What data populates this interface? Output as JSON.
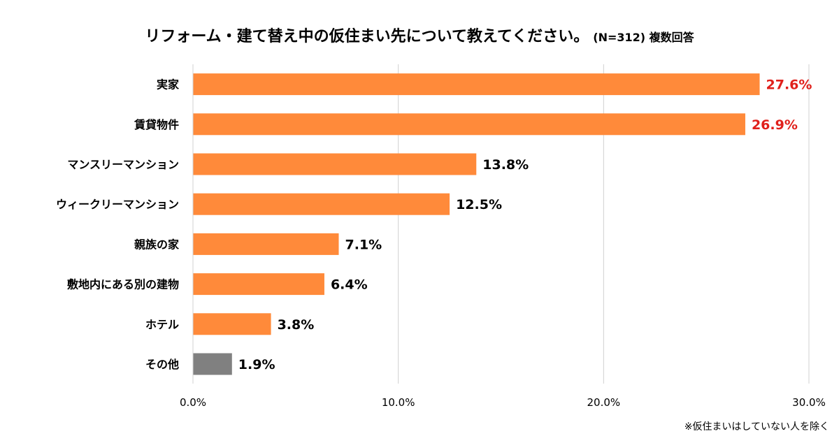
{
  "title": {
    "main": "リフォーム・建て替え中の仮住まい先について教えてください。",
    "sub": "(N=312) 複数回答"
  },
  "footnote": "※仮住まいはしていない人を除く",
  "colors": {
    "bar": "#FF8A3A",
    "bar_other": "#808080",
    "highlight_label": "#E0201B",
    "label": "#000000",
    "grid": "#D0D0D0",
    "axis": "#D0D0D0"
  },
  "chart_data": {
    "type": "bar",
    "orientation": "horizontal",
    "title": "リフォーム・建て替え中の仮住まい先について教えてください。 (N=312) 複数回答",
    "categories": [
      "実家",
      "賃貸物件",
      "マンスリーマンション",
      "ウィークリーマンション",
      "親族の家",
      "敷地内にある別の建物",
      "ホテル",
      "その他"
    ],
    "values": [
      27.6,
      26.9,
      13.8,
      12.5,
      7.1,
      6.4,
      3.8,
      1.9
    ],
    "value_labels": [
      "27.6%",
      "26.9%",
      "13.8%",
      "12.5%",
      "7.1%",
      "6.4%",
      "3.8%",
      "1.9%"
    ],
    "highlighted": [
      true,
      true,
      false,
      false,
      false,
      false,
      false,
      false
    ],
    "gray_bars": [
      false,
      false,
      false,
      false,
      false,
      false,
      false,
      true
    ],
    "xlim": [
      0,
      30
    ],
    "xticks": [
      0,
      10,
      20,
      30
    ],
    "xtick_labels": [
      "0.0%",
      "10.0%",
      "20.0%",
      "30.0%"
    ],
    "xlabel": "",
    "ylabel": "",
    "grid": true
  }
}
